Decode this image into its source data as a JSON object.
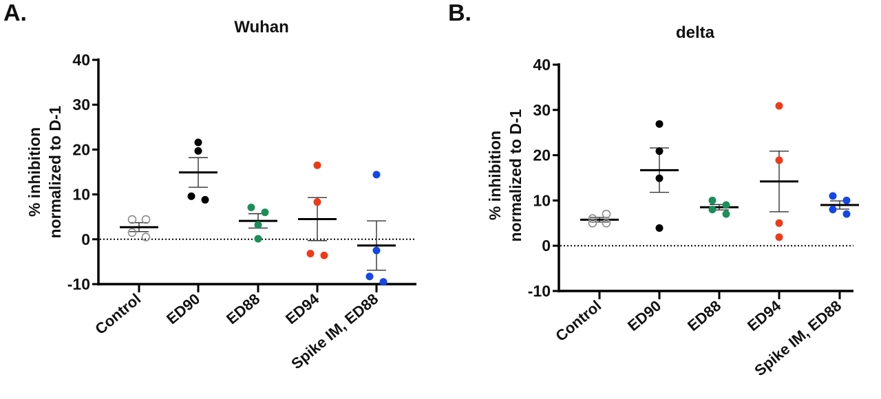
{
  "chart_data": [
    {
      "panel_label": "A.",
      "type": "scatter",
      "title": "Wuhan",
      "ylabel_lines": [
        "% inhibition",
        "normalized to D-1"
      ],
      "ylim": [
        -10,
        40
      ],
      "yticks": [
        "-10",
        "0",
        "10",
        "20",
        "30",
        "40"
      ],
      "reference_line": 0,
      "grid": false,
      "categories": [
        "Control",
        "ED90",
        "ED88",
        "ED94",
        "Spike IM, ED88"
      ],
      "colors": [
        "#8a8a8a",
        "#000000",
        "#1a8f5a",
        "#f03a17",
        "#1446e8"
      ],
      "open_markers": [
        true,
        false,
        false,
        false,
        false
      ],
      "points": [
        [
          4.4,
          4.4,
          1.5,
          0.5
        ],
        [
          21.6,
          19.7,
          9.6,
          8.8
        ],
        [
          7.1,
          6.0,
          3.2,
          0.1
        ],
        [
          16.5,
          8.3,
          -3.2,
          -3.6
        ],
        [
          14.4,
          -2.5,
          -8.3,
          -9.5
        ]
      ],
      "mean": [
        2.7,
        14.9,
        4.1,
        4.5,
        -1.4
      ],
      "sem": [
        1.0,
        3.3,
        1.6,
        4.8,
        5.5
      ]
    },
    {
      "panel_label": "B.",
      "type": "scatter",
      "title": "delta",
      "ylabel_lines": [
        "% inhibition",
        "normalized to D-1"
      ],
      "ylim": [
        -10,
        40
      ],
      "yticks": [
        "-10",
        "0",
        "10",
        "20",
        "30",
        "40"
      ],
      "reference_line": 0,
      "grid": false,
      "categories": [
        "Control",
        "ED90",
        "ED88",
        "ED94",
        "Spike IM, ED88"
      ],
      "colors": [
        "#8a8a8a",
        "#000000",
        "#1a8f5a",
        "#f03a17",
        "#1446e8"
      ],
      "open_markers": [
        true,
        false,
        false,
        false,
        false
      ],
      "points": [
        [
          6.0,
          7.0,
          5.0,
          5.0
        ],
        [
          26.9,
          20.9,
          14.9,
          3.9
        ],
        [
          10.0,
          9.0,
          8.0,
          7.0
        ],
        [
          30.9,
          18.9,
          5.0,
          1.9
        ],
        [
          11.0,
          10.0,
          8.0,
          7.0
        ]
      ],
      "mean": [
        5.75,
        16.7,
        8.5,
        14.2,
        9.0
      ],
      "sem": [
        0.5,
        4.9,
        0.6,
        6.7,
        0.9
      ]
    }
  ]
}
